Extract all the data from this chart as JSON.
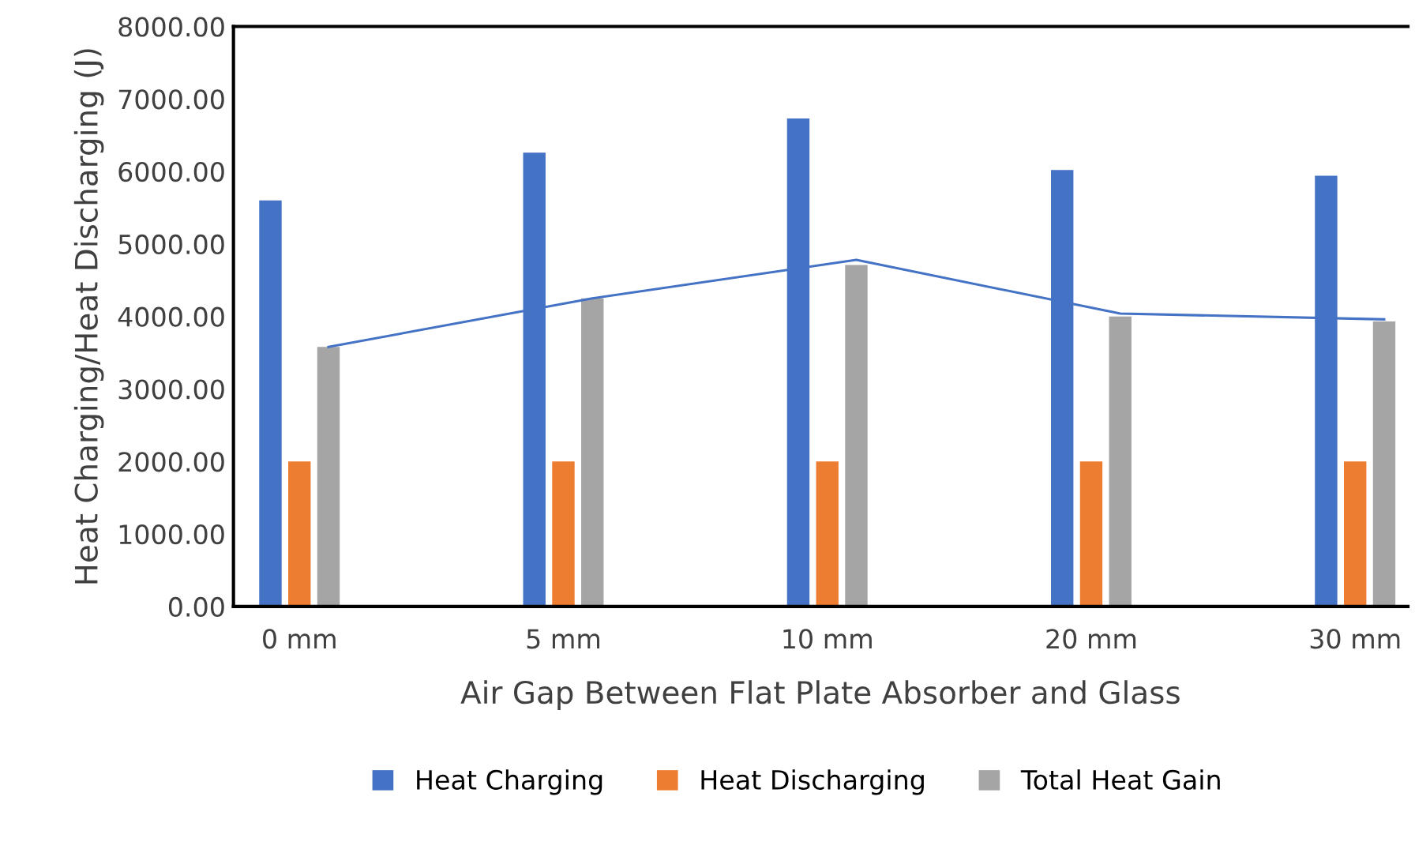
{
  "chart_data": {
    "type": "bar",
    "xlabel": "Air Gap Between Flat Plate Absorber and Glass",
    "ylabel": "Heat Charging/Heat Discharging (J)",
    "categories": [
      "0 mm",
      "5 mm",
      "10 mm",
      "20 mm",
      "30 mm"
    ],
    "series": [
      {
        "name": "Heat Charging",
        "color": "#4472c4",
        "values": [
          5600,
          6260,
          6730,
          6020,
          5940
        ]
      },
      {
        "name": "Heat Discharging",
        "color": "#ed7d31",
        "values": [
          2000,
          2000,
          2000,
          2000,
          2000
        ]
      },
      {
        "name": "Total Heat Gain",
        "color": "#a5a5a5",
        "values": [
          3580,
          4250,
          4710,
          4000,
          3930
        ]
      },
      {
        "type": "line",
        "color": "#4472c4",
        "values": [
          3580,
          4250,
          4780,
          4040,
          3960
        ]
      }
    ],
    "ylim": [
      0,
      8000
    ],
    "yticks": [
      {
        "value": 0,
        "label": "0.00"
      },
      {
        "value": 1000,
        "label": "1000.00"
      },
      {
        "value": 2000,
        "label": "2000.00"
      },
      {
        "value": 3000,
        "label": "3000.00"
      },
      {
        "value": 4000,
        "label": "4000.00"
      },
      {
        "value": 5000,
        "label": "5000.00"
      },
      {
        "value": 6000,
        "label": "6000.00"
      },
      {
        "value": 7000,
        "label": "7000.00"
      },
      {
        "value": 8000,
        "label": "8000.00"
      }
    ],
    "grid": false,
    "legend": "bottom",
    "marker": "none"
  }
}
